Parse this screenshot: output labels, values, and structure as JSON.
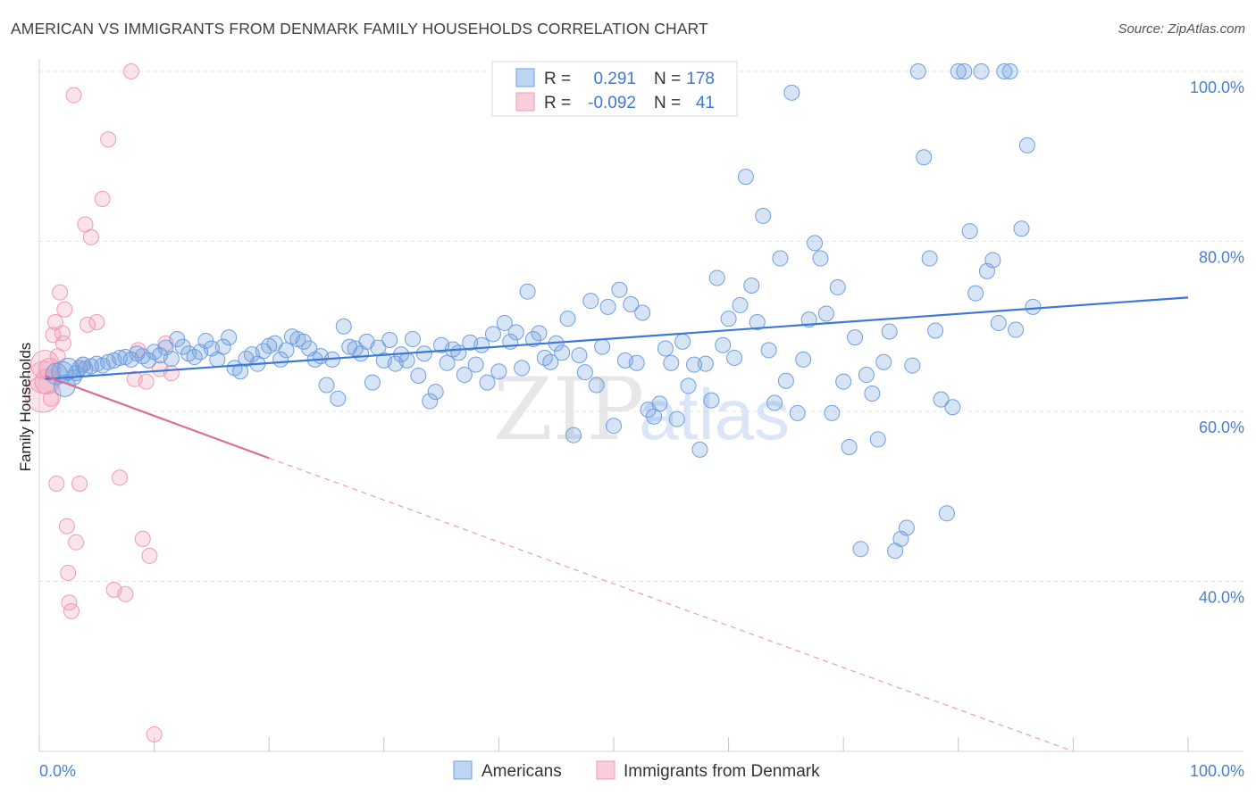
{
  "title": "AMERICAN VS IMMIGRANTS FROM DENMARK FAMILY HOUSEHOLDS CORRELATION CHART",
  "source": "Source: ZipAtlas.com",
  "watermark": {
    "zip": "ZIP",
    "atlas": "atlas"
  },
  "legend_box": {
    "rows": [
      {
        "r_label": "R =",
        "r_value": "0.291",
        "n_label": "N =",
        "n_value": "178"
      },
      {
        "r_label": "R =",
        "r_value": "-0.092",
        "n_label": "N =",
        "n_value": "41"
      }
    ]
  },
  "bottom_legend": [
    "Americans",
    "Immigrants from Denmark"
  ],
  "chart_data": {
    "type": "scatter",
    "title": "AMERICAN VS IMMIGRANTS FROM DENMARK FAMILY HOUSEHOLDS CORRELATION CHART",
    "xlabel": "",
    "ylabel": "Family Households",
    "xlim": [
      0,
      100
    ],
    "ylim": [
      20,
      102
    ],
    "x_tick_labels": [
      {
        "value": 0,
        "label": "0.0%"
      },
      {
        "value": 100,
        "label": "100.0%"
      }
    ],
    "y_tick_labels": [
      {
        "value": 40,
        "label": "40.0%"
      },
      {
        "value": 60,
        "label": "60.0%"
      },
      {
        "value": 80,
        "label": "80.0%"
      },
      {
        "value": 100,
        "label": "100.0%"
      }
    ],
    "colors": {
      "americans": "#6f9fe0",
      "americans_line": "#3c78d8",
      "denmark": "#f19ab5",
      "denmark_line": "#e06a94"
    },
    "series": [
      {
        "name": "Americans",
        "R": 0.291,
        "N": 178,
        "trend": {
          "x0": 0.5,
          "y0": 63.8,
          "x1": 100,
          "y1": 73.4
        },
        "points": [
          [
            1.5,
            64.4
          ],
          [
            2.2,
            63.0
          ],
          [
            2.0,
            64.6
          ],
          [
            2.5,
            65.0
          ],
          [
            3.0,
            64.0
          ],
          [
            3.2,
            64.5
          ],
          [
            3.5,
            65.1
          ],
          [
            3.8,
            65.5
          ],
          [
            4.0,
            65.0
          ],
          [
            4.5,
            65.3
          ],
          [
            5.0,
            65.6
          ],
          [
            5.5,
            65.4
          ],
          [
            6.0,
            65.8
          ],
          [
            6.5,
            66.0
          ],
          [
            7.0,
            66.3
          ],
          [
            7.5,
            66.4
          ],
          [
            8.0,
            66.1
          ],
          [
            8.5,
            66.8
          ],
          [
            9.0,
            66.5
          ],
          [
            9.5,
            66.0
          ],
          [
            10.0,
            67.0
          ],
          [
            10.5,
            66.6
          ],
          [
            11.0,
            67.5
          ],
          [
            11.5,
            66.2
          ],
          [
            12.0,
            68.5
          ],
          [
            12.5,
            67.6
          ],
          [
            13.0,
            66.8
          ],
          [
            13.5,
            66.4
          ],
          [
            14.0,
            67.0
          ],
          [
            14.5,
            68.3
          ],
          [
            15.0,
            67.4
          ],
          [
            15.5,
            66.1
          ],
          [
            16.0,
            67.6
          ],
          [
            16.5,
            68.7
          ],
          [
            17.0,
            65.1
          ],
          [
            17.5,
            64.7
          ],
          [
            18.0,
            66.2
          ],
          [
            18.5,
            66.7
          ],
          [
            19.0,
            65.6
          ],
          [
            19.5,
            67.1
          ],
          [
            20.0,
            67.7
          ],
          [
            20.5,
            68.0
          ],
          [
            21.0,
            66.1
          ],
          [
            21.5,
            67.2
          ],
          [
            22.0,
            68.8
          ],
          [
            22.5,
            68.5
          ],
          [
            23.0,
            68.2
          ],
          [
            23.5,
            67.4
          ],
          [
            24.0,
            66.1
          ],
          [
            24.5,
            66.5
          ],
          [
            25.0,
            63.1
          ],
          [
            25.5,
            66.1
          ],
          [
            26.0,
            61.5
          ],
          [
            26.5,
            70.0
          ],
          [
            27.0,
            67.6
          ],
          [
            27.5,
            67.4
          ],
          [
            28.0,
            66.8
          ],
          [
            28.5,
            68.2
          ],
          [
            29.0,
            63.4
          ],
          [
            29.5,
            67.5
          ],
          [
            30.0,
            66.0
          ],
          [
            30.5,
            68.4
          ],
          [
            31.0,
            65.6
          ],
          [
            31.5,
            66.7
          ],
          [
            32.0,
            66.0
          ],
          [
            32.5,
            68.5
          ],
          [
            33.0,
            64.2
          ],
          [
            33.5,
            66.8
          ],
          [
            34.0,
            61.2
          ],
          [
            34.5,
            62.3
          ],
          [
            35.0,
            67.8
          ],
          [
            35.5,
            65.7
          ],
          [
            36.0,
            67.3
          ],
          [
            36.5,
            66.9
          ],
          [
            37.0,
            64.3
          ],
          [
            37.5,
            68.1
          ],
          [
            38.0,
            65.5
          ],
          [
            38.5,
            67.8
          ],
          [
            39.0,
            63.4
          ],
          [
            39.5,
            69.1
          ],
          [
            40.0,
            64.7
          ],
          [
            40.5,
            70.4
          ],
          [
            41.0,
            68.2
          ],
          [
            41.5,
            69.3
          ],
          [
            42.0,
            65.1
          ],
          [
            42.5,
            74.1
          ],
          [
            43.0,
            68.5
          ],
          [
            43.5,
            69.2
          ],
          [
            44.0,
            66.3
          ],
          [
            44.5,
            65.8
          ],
          [
            45.0,
            68.0
          ],
          [
            45.5,
            66.9
          ],
          [
            46.0,
            70.9
          ],
          [
            46.5,
            57.2
          ],
          [
            47.0,
            66.6
          ],
          [
            47.5,
            64.6
          ],
          [
            48.0,
            73.0
          ],
          [
            48.5,
            63.1
          ],
          [
            49.0,
            67.6
          ],
          [
            49.5,
            72.3
          ],
          [
            50.0,
            58.3
          ],
          [
            50.5,
            74.3
          ],
          [
            51.0,
            66.0
          ],
          [
            51.5,
            72.6
          ],
          [
            52.0,
            65.7
          ],
          [
            52.5,
            71.6
          ],
          [
            53.0,
            60.2
          ],
          [
            53.5,
            59.4
          ],
          [
            54.0,
            60.9
          ],
          [
            54.5,
            67.4
          ],
          [
            55.0,
            65.7
          ],
          [
            55.5,
            59.1
          ],
          [
            56.0,
            68.2
          ],
          [
            56.5,
            63.0
          ],
          [
            57.0,
            65.5
          ],
          [
            57.5,
            55.5
          ],
          [
            58.0,
            65.6
          ],
          [
            58.5,
            61.3
          ],
          [
            59.0,
            75.7
          ],
          [
            59.5,
            67.8
          ],
          [
            60.0,
            70.9
          ],
          [
            60.5,
            66.3
          ],
          [
            61.0,
            72.5
          ],
          [
            61.5,
            87.6
          ],
          [
            62.0,
            74.8
          ],
          [
            62.5,
            70.5
          ],
          [
            63.0,
            83.0
          ],
          [
            63.5,
            67.2
          ],
          [
            64.0,
            61.0
          ],
          [
            64.5,
            78.0
          ],
          [
            65.0,
            63.6
          ],
          [
            65.5,
            97.5
          ],
          [
            66.0,
            59.8
          ],
          [
            66.5,
            66.1
          ],
          [
            67.0,
            70.8
          ],
          [
            67.5,
            79.8
          ],
          [
            68.0,
            78.0
          ],
          [
            68.5,
            71.5
          ],
          [
            69.0,
            59.8
          ],
          [
            69.5,
            74.6
          ],
          [
            70.0,
            63.5
          ],
          [
            70.5,
            55.8
          ],
          [
            71.0,
            68.7
          ],
          [
            71.5,
            43.8
          ],
          [
            72.0,
            64.3
          ],
          [
            72.5,
            62.1
          ],
          [
            73.0,
            56.7
          ],
          [
            73.5,
            65.8
          ],
          [
            74.0,
            69.4
          ],
          [
            74.5,
            43.6
          ],
          [
            75.0,
            45.0
          ],
          [
            75.5,
            46.3
          ],
          [
            76.0,
            65.4
          ],
          [
            76.5,
            100.0
          ],
          [
            77.0,
            89.9
          ],
          [
            77.5,
            78.0
          ],
          [
            78.0,
            69.5
          ],
          [
            78.5,
            61.4
          ],
          [
            79.0,
            48.0
          ],
          [
            79.5,
            60.5
          ],
          [
            80.0,
            100.0
          ],
          [
            80.5,
            100.0
          ],
          [
            81.0,
            81.2
          ],
          [
            81.5,
            73.9
          ],
          [
            82.0,
            100.0
          ],
          [
            82.5,
            76.5
          ],
          [
            83.0,
            77.8
          ],
          [
            83.5,
            70.4
          ],
          [
            84.0,
            100.0
          ],
          [
            84.5,
            100.0
          ],
          [
            85.0,
            69.6
          ],
          [
            85.5,
            81.5
          ],
          [
            86.0,
            91.3
          ],
          [
            86.5,
            72.3
          ]
        ]
      },
      {
        "name": "Immigrants from Denmark",
        "R": -0.092,
        "N": 41,
        "trend": {
          "x0": 0.5,
          "y0": 64.2,
          "x1": 20,
          "y1": 54.5
        },
        "trend_extension": {
          "x0": 20,
          "y0": 54.5,
          "x1": 90,
          "y1": 20.0
        },
        "points": [
          [
            0.3,
            62.0
          ],
          [
            0.4,
            64.0
          ],
          [
            0.5,
            65.5
          ],
          [
            0.7,
            63.5
          ],
          [
            0.9,
            65.0
          ],
          [
            1.0,
            61.5
          ],
          [
            1.2,
            69.0
          ],
          [
            1.4,
            70.5
          ],
          [
            1.5,
            51.5
          ],
          [
            1.6,
            66.5
          ],
          [
            1.8,
            74.0
          ],
          [
            2.0,
            69.2
          ],
          [
            2.1,
            68.0
          ],
          [
            2.2,
            72.0
          ],
          [
            2.4,
            46.5
          ],
          [
            2.5,
            41.0
          ],
          [
            2.6,
            37.5
          ],
          [
            2.8,
            36.5
          ],
          [
            3.0,
            97.2
          ],
          [
            3.2,
            44.6
          ],
          [
            3.5,
            51.5
          ],
          [
            3.8,
            65.5
          ],
          [
            4.0,
            82.0
          ],
          [
            4.2,
            70.2
          ],
          [
            4.5,
            80.5
          ],
          [
            5.0,
            70.5
          ],
          [
            5.5,
            85.0
          ],
          [
            6.0,
            92.0
          ],
          [
            6.5,
            39.0
          ],
          [
            7.0,
            52.2
          ],
          [
            7.5,
            38.5
          ],
          [
            8.0,
            100.0
          ],
          [
            8.3,
            63.8
          ],
          [
            8.6,
            67.2
          ],
          [
            9.0,
            45.0
          ],
          [
            9.3,
            63.5
          ],
          [
            9.6,
            43.0
          ],
          [
            10.0,
            22.0
          ],
          [
            10.5,
            65.0
          ],
          [
            11.0,
            68.0
          ],
          [
            11.5,
            64.5
          ]
        ]
      }
    ]
  }
}
